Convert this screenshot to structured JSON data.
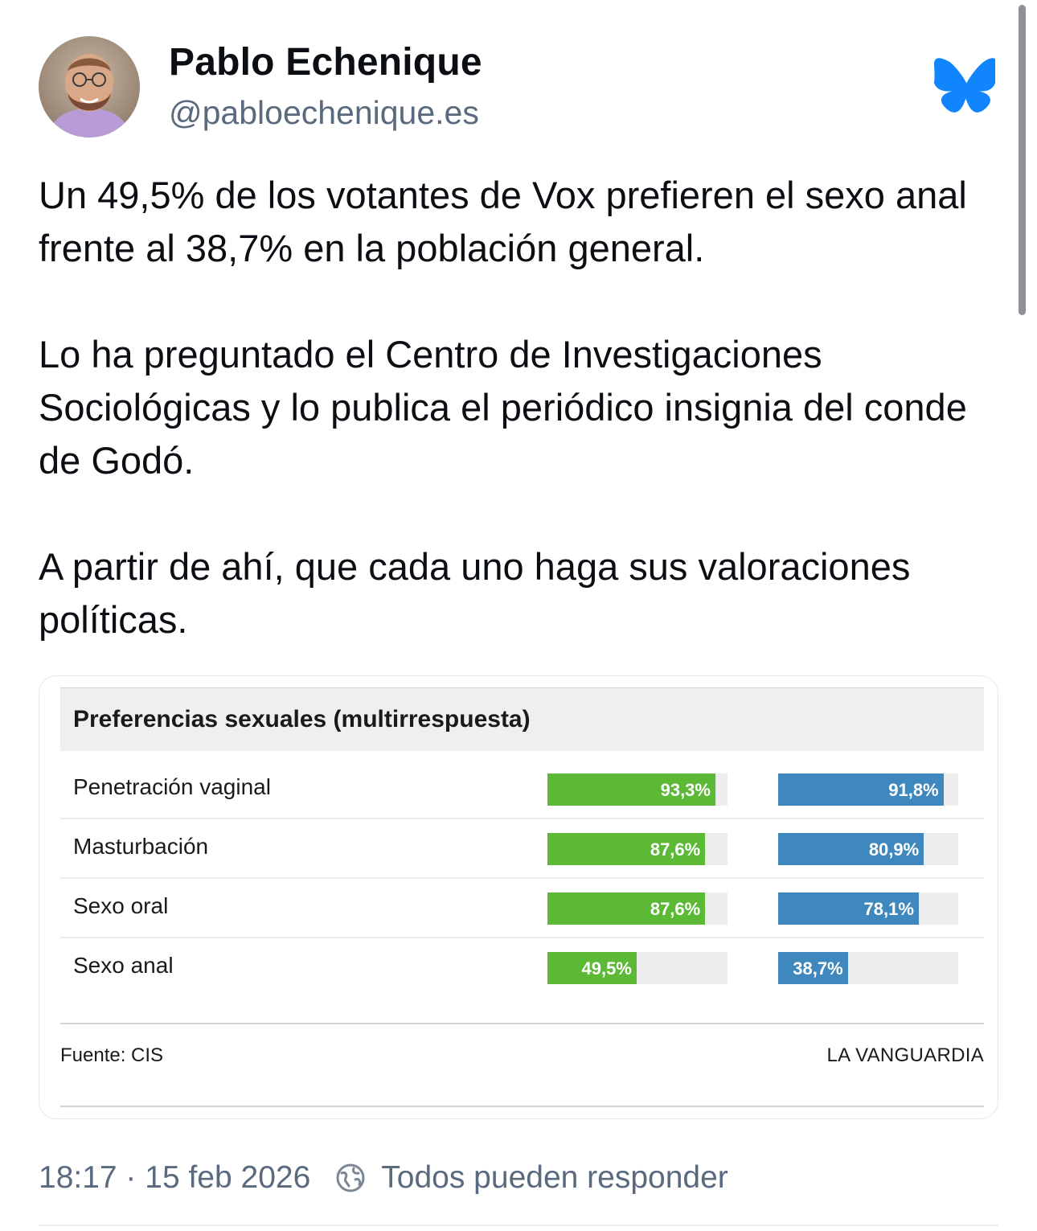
{
  "author": {
    "name": "Pablo Echenique",
    "handle": "@pabloechenique.es"
  },
  "post": {
    "paragraphs": [
      "Un 49,5% de los votantes de Vox prefieren el sexo anal frente al 38,7% en la población general.",
      "Lo ha preguntado el Centro de Investigaciones Sociológicas y lo publica el periódico insignia del conde de Godó.",
      "A partir de ahí, que cada uno haga sus valoraciones políticas."
    ]
  },
  "embed": {
    "title": "Preferencias sexuales (multirrespuesta)",
    "source": "Fuente: CIS",
    "brand": "LA VANGUARDIA",
    "colors": {
      "green": "#5cb936",
      "blue": "#3f88bd",
      "track": "#ececec"
    }
  },
  "chart_data": {
    "type": "bar",
    "title": "Preferencias sexuales (multirrespuesta)",
    "categories": [
      "Penetración vaginal",
      "Masturbación",
      "Sexo oral",
      "Sexo anal"
    ],
    "series": [
      {
        "values": [
          93.3,
          87.6,
          87.6,
          49.5
        ],
        "labels": [
          "93,3%",
          "87,6%",
          "87,6%",
          "49,5%"
        ],
        "color": "#5cb936"
      },
      {
        "values": [
          91.8,
          80.9,
          78.1,
          38.7
        ],
        "labels": [
          "91,8%",
          "80,9%",
          "78,1%",
          "38,7%"
        ],
        "color": "#3f88bd"
      }
    ],
    "ylim": [
      0,
      100
    ]
  },
  "meta": {
    "timestamp": "18:17 · 15 feb 2026",
    "reply_setting": "Todos pueden responder",
    "icons": {
      "reply": "globe-earth-icon",
      "logo": "bluesky-butterfly-icon"
    }
  }
}
